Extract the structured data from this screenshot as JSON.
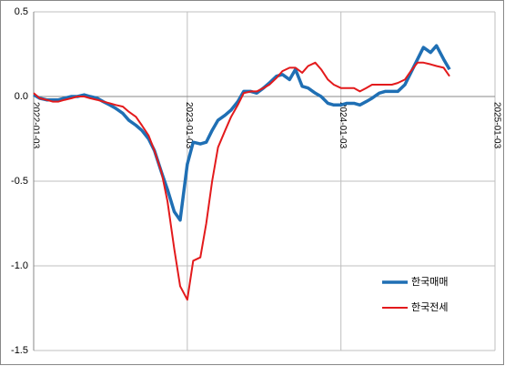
{
  "chart_data": {
    "type": "line",
    "x": [
      "2022-01-03",
      "2022-01-17",
      "2022-02-03",
      "2022-02-17",
      "2022-03-03",
      "2022-03-17",
      "2022-04-03",
      "2022-04-17",
      "2022-05-03",
      "2022-05-17",
      "2022-06-03",
      "2022-06-17",
      "2022-07-03",
      "2022-07-17",
      "2022-08-03",
      "2022-08-17",
      "2022-09-03",
      "2022-09-17",
      "2022-10-03",
      "2022-10-17",
      "2022-11-03",
      "2022-11-17",
      "2022-12-03",
      "2022-12-17",
      "2023-01-03",
      "2023-01-17",
      "2023-02-03",
      "2023-02-17",
      "2023-03-03",
      "2023-03-17",
      "2023-04-03",
      "2023-04-17",
      "2023-05-03",
      "2023-05-17",
      "2023-06-03",
      "2023-06-17",
      "2023-07-03",
      "2023-07-17",
      "2023-08-03",
      "2023-08-17",
      "2023-09-03",
      "2023-09-17",
      "2023-10-03",
      "2023-10-17",
      "2023-11-03",
      "2023-11-17",
      "2023-12-03",
      "2023-12-17",
      "2024-01-03",
      "2024-01-17",
      "2024-02-03",
      "2024-02-17",
      "2024-03-03",
      "2024-03-17",
      "2024-04-03",
      "2024-04-17",
      "2024-05-03",
      "2024-05-17",
      "2024-06-03",
      "2024-06-17",
      "2024-07-03",
      "2024-07-17",
      "2024-08-03",
      "2024-08-17",
      "2024-09-03",
      "2024-09-17"
    ],
    "series": [
      {
        "name": "한국매매",
        "color": "#1f6fb4",
        "width": 3.5,
        "values": [
          0.01,
          -0.01,
          -0.02,
          -0.02,
          -0.02,
          -0.01,
          0.0,
          0.0,
          0.01,
          0.0,
          -0.01,
          -0.03,
          -0.05,
          -0.07,
          -0.1,
          -0.14,
          -0.17,
          -0.2,
          -0.25,
          -0.32,
          -0.45,
          -0.55,
          -0.68,
          -0.73,
          -0.4,
          -0.27,
          -0.28,
          -0.27,
          -0.2,
          -0.14,
          -0.11,
          -0.08,
          -0.03,
          0.03,
          0.03,
          0.02,
          0.05,
          0.08,
          0.12,
          0.13,
          0.1,
          0.16,
          0.06,
          0.05,
          0.02,
          0.0,
          -0.04,
          -0.05,
          -0.05,
          -0.04,
          -0.04,
          -0.05,
          -0.03,
          -0.01,
          0.02,
          0.03,
          0.03,
          0.03,
          0.07,
          0.14,
          0.22,
          0.29,
          0.26,
          0.3,
          0.22,
          0.16
        ]
      },
      {
        "name": "한국전세",
        "color": "#e31a1c",
        "width": 2,
        "values": [
          0.02,
          -0.01,
          -0.02,
          -0.03,
          -0.03,
          -0.02,
          -0.01,
          0.0,
          0.0,
          -0.01,
          -0.02,
          -0.03,
          -0.04,
          -0.05,
          -0.06,
          -0.09,
          -0.12,
          -0.17,
          -0.23,
          -0.32,
          -0.45,
          -0.62,
          -0.9,
          -1.12,
          -1.2,
          -0.97,
          -0.95,
          -0.75,
          -0.5,
          -0.3,
          -0.2,
          -0.12,
          -0.05,
          0.02,
          0.03,
          0.03,
          0.05,
          0.07,
          0.11,
          0.15,
          0.17,
          0.17,
          0.14,
          0.18,
          0.2,
          0.16,
          0.1,
          0.07,
          0.05,
          0.05,
          0.05,
          0.03,
          0.05,
          0.07,
          0.07,
          0.07,
          0.07,
          0.08,
          0.1,
          0.15,
          0.2,
          0.2,
          0.19,
          0.18,
          0.17,
          0.12
        ]
      }
    ],
    "xlim": [
      "2022-01-03",
      "2025-01-03"
    ],
    "xticks": [
      "2022-01-03",
      "2023-01-03",
      "2024-01-03",
      "2025-01-03"
    ],
    "ylim": [
      -1.5,
      0.5
    ],
    "yticks": [
      0.5,
      {
        "value": 0,
        "label": "0.0"
      },
      -0.5,
      {
        "value": -1,
        "label": "-1.0"
      },
      -1.5
    ],
    "grid": true,
    "legend": "lower right"
  }
}
